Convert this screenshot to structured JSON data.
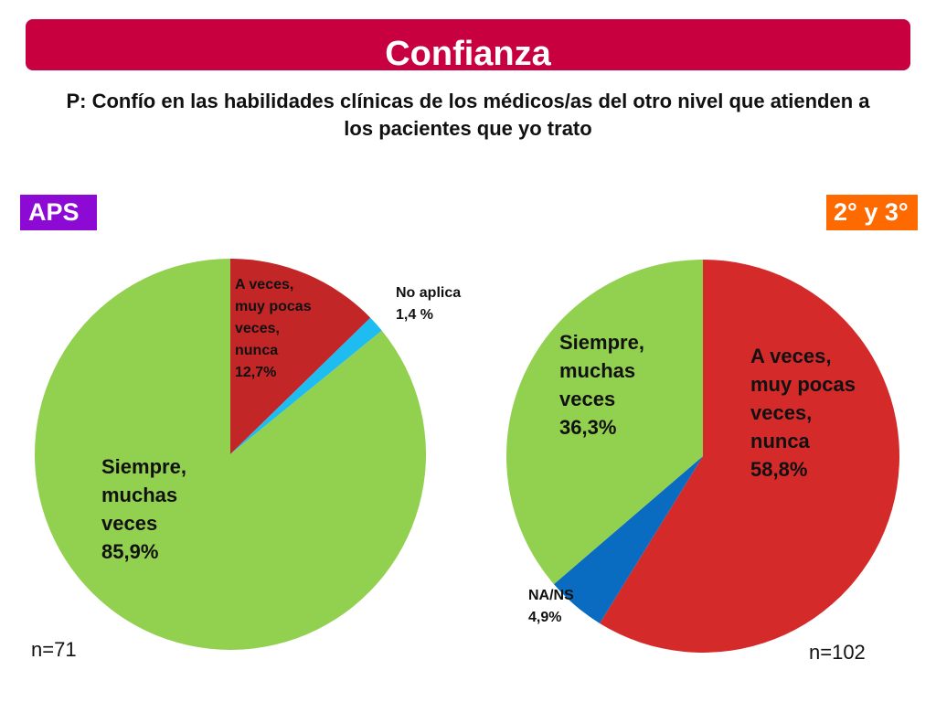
{
  "header": {
    "title": "Confianza",
    "question_prefix": "P:",
    "question_text": " Confío en las habilidades clínicas de los médicos/as del otro nivel que atienden a los pacientes que yo trato"
  },
  "colors": {
    "banner": "#c8003f",
    "aps_badge": "#8d09d4",
    "secondary_badge": "#ff6a00",
    "green": "#92d050",
    "red_aps": "#c22626",
    "red_23": "#d42a2a",
    "light_blue": "#1ebcf0",
    "blue": "#0a6cc0"
  },
  "chart_data": [
    {
      "type": "pie",
      "title": "APS",
      "n_label": "n=71",
      "slices": [
        {
          "label": "A veces,\nmuy pocas\nveces,\nnunca\n12,7%",
          "value": 12.7,
          "color": "#c22626"
        },
        {
          "label": "No aplica\n1,4 %",
          "value": 1.4,
          "color": "#1ebcf0"
        },
        {
          "label": "Siempre,\nmuchas\nveces\n85,9%",
          "value": 85.9,
          "color": "#92d050"
        }
      ]
    },
    {
      "type": "pie",
      "title": "2° y 3°",
      "n_label": "n=102",
      "slices": [
        {
          "label": "A veces,\nmuy pocas\nveces,\nnunca\n58,8%",
          "value": 58.8,
          "color": "#d42a2a"
        },
        {
          "label": "NA/NS\n4,9%",
          "value": 4.9,
          "color": "#0a6cc0"
        },
        {
          "label": "Siempre,\nmuchas\nveces\n36,3%",
          "value": 36.3,
          "color": "#92d050"
        }
      ]
    }
  ]
}
